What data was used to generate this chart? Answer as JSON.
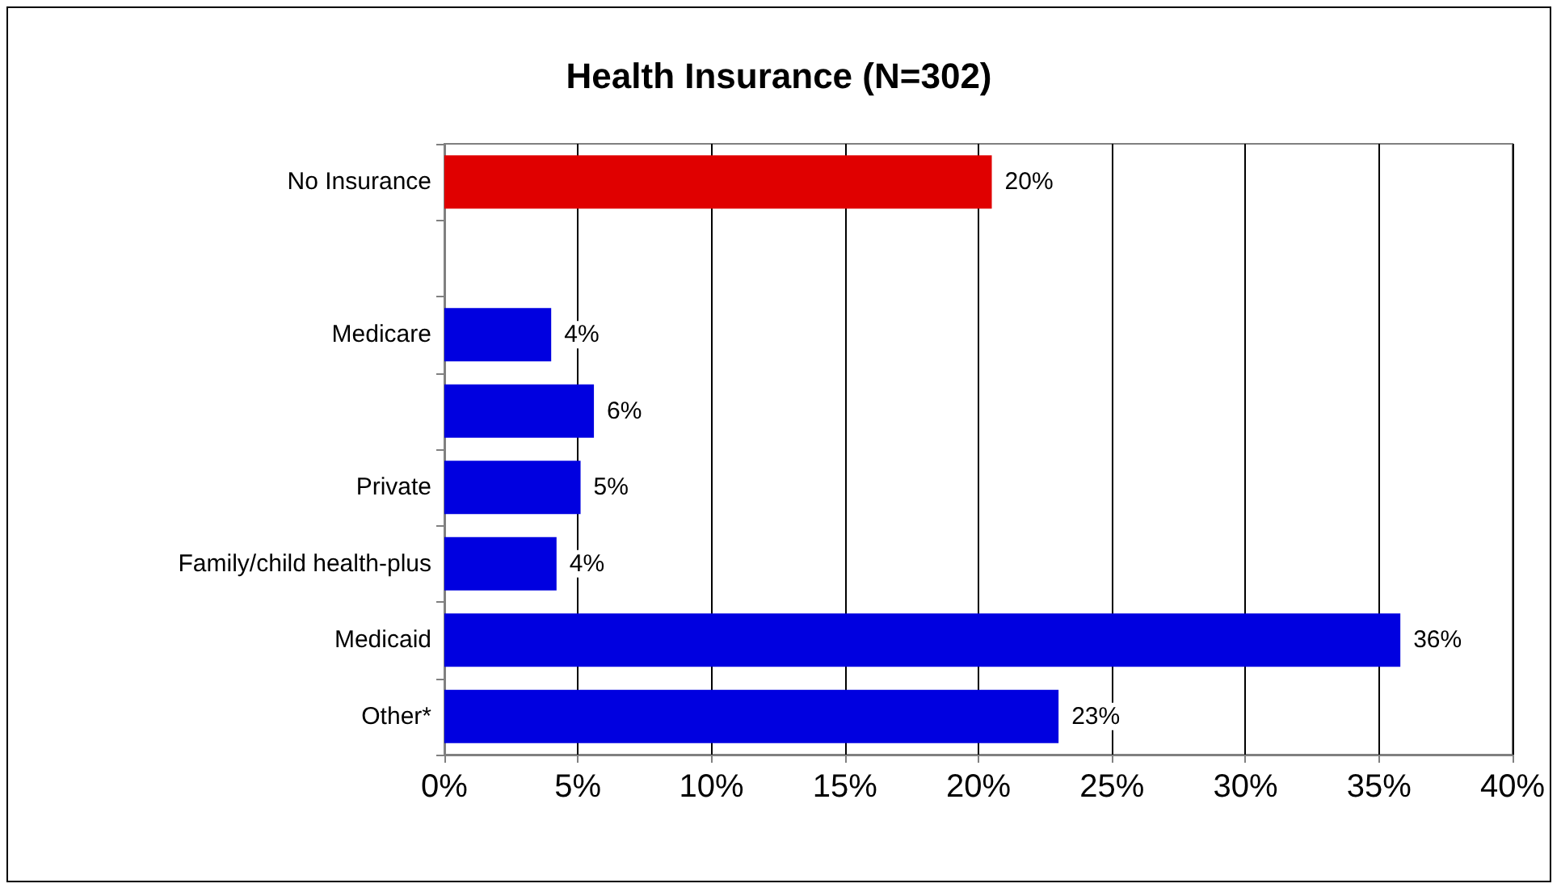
{
  "chart_data": {
    "type": "bar",
    "orientation": "horizontal",
    "title": "Health Insurance (N=302)",
    "categories": [
      "No Insurance",
      null,
      "Medicare",
      null,
      "Private",
      "Family/child health-plus",
      "Medicaid",
      "Other*"
    ],
    "values": [
      20.5,
      null,
      4.0,
      5.6,
      5.1,
      4.2,
      35.8,
      23.0
    ],
    "value_labels": [
      "20%",
      null,
      "4%",
      "6%",
      "5%",
      "4%",
      "36%",
      "23%"
    ],
    "colors": [
      "#e00000",
      null,
      "#0000e0",
      "#0000e0",
      "#0000e0",
      "#0000e0",
      "#0000e0",
      "#0000e0"
    ],
    "xlim": [
      0,
      40
    ],
    "xticks": [
      {
        "value": 0,
        "label": "0%"
      },
      {
        "value": 5,
        "label": "5%"
      },
      {
        "value": 10,
        "label": "10%"
      },
      {
        "value": 15,
        "label": "15%"
      },
      {
        "value": 20,
        "label": "20%"
      },
      {
        "value": 25,
        "label": "25%"
      },
      {
        "value": 30,
        "label": "30%"
      },
      {
        "value": 35,
        "label": "35%"
      },
      {
        "value": 40,
        "label": "40%"
      }
    ],
    "grid": "x"
  }
}
